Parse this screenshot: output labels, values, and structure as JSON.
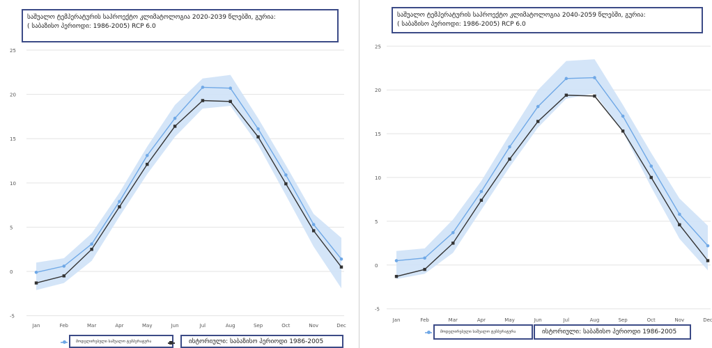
{
  "charts": [
    {
      "title_line1": "საშუალო ტემპერატურის საპროექტო კლიმატოლოგია 2020-2039 წლებში, გურია:",
      "title_line2": "( საბაზისო პერიოდი:  1986-2005) RCP 6.0",
      "legend_projected": "მოდელირებული საშუალო ტემპერატურა",
      "legend_historical": "ისტორიული: საბაზისო პერიოდი 1986-2005"
    },
    {
      "title_line1": "საშუალო ტემპერატურის საპროექტო კლიმატოლოგია 2040-2059 წლებში, გურია:",
      "title_line2": "( საბაზისო პერიოდი:  1986-2005) RCP 6.0",
      "legend_projected": "მოდელირებული საშუალო ტემპერატურა",
      "legend_historical": "ისტორიული: საბაზისო პერიოდი 1986-2005"
    }
  ],
  "colors": {
    "projected_line": "#6fa8e6",
    "band": "#cfe2f7",
    "historical_line": "#333333",
    "frame": "#3b4a86",
    "grid": "#e3e3e3"
  },
  "chart_data": [
    {
      "type": "line",
      "title": "საშუალო ტემპერატურის საპროექტო კლიმატოლოგია 2020-2039 წლებში, გურია:",
      "categories": [
        "Jan",
        "Feb",
        "Mar",
        "Apr",
        "May",
        "Jun",
        "Jul",
        "Aug",
        "Sep",
        "Oct",
        "Nov",
        "Dec"
      ],
      "yticks": [
        -5,
        0,
        5,
        10,
        15,
        20,
        25
      ],
      "ylim": [
        -5.5,
        25
      ],
      "series": [
        {
          "name": "მოდელირებული საშუალო ტემპერატურა",
          "values": [
            -0.1,
            0.6,
            3.1,
            7.9,
            13.1,
            17.3,
            20.8,
            20.7,
            16.1,
            10.9,
            5.3,
            1.4
          ]
        },
        {
          "name": "ისტორიული: საბაზისო პერიოდი 1986-2005",
          "values": [
            -1.3,
            -0.5,
            2.5,
            7.3,
            12.1,
            16.4,
            19.3,
            19.2,
            15.2,
            9.9,
            4.6,
            0.5
          ]
        }
      ],
      "band": {
        "lower": [
          -2.1,
          -1.3,
          1.2,
          6.2,
          11.0,
          15.2,
          18.4,
          18.7,
          14.3,
          8.6,
          2.8,
          -1.9
        ],
        "upper": [
          1.0,
          1.5,
          4.3,
          8.9,
          14.1,
          18.8,
          21.8,
          22.2,
          17.3,
          12.0,
          6.5,
          3.8
        ]
      },
      "grid": true
    },
    {
      "type": "line",
      "title": "საშუალო ტემპერატურის საპროექტო კლიმატოლოგია 2040-2059 წლებში, გურია:",
      "categories": [
        "Jan",
        "Feb",
        "Mar",
        "Apr",
        "May",
        "Jun",
        "Jul",
        "Aug",
        "Sep",
        "Oct",
        "Nov",
        "Dec"
      ],
      "yticks": [
        -5,
        0,
        5,
        10,
        15,
        20,
        25
      ],
      "ylim": [
        -5.5,
        25.5
      ],
      "series": [
        {
          "name": "მოდელირებული საშუალო ტემპერატურა",
          "values": [
            0.5,
            0.8,
            3.7,
            8.4,
            13.5,
            18.1,
            21.3,
            21.4,
            17.0,
            11.3,
            5.8,
            2.2
          ]
        },
        {
          "name": "ისტორიული: საბაზისო პერიოდი 1986-2005",
          "values": [
            -1.3,
            -0.5,
            2.5,
            7.4,
            12.1,
            16.4,
            19.4,
            19.3,
            15.3,
            10.0,
            4.6,
            0.5
          ]
        }
      ],
      "band": {
        "lower": [
          -1.6,
          -1.0,
          1.4,
          6.3,
          11.2,
          15.7,
          19.0,
          19.6,
          15.2,
          8.9,
          3.0,
          -0.6
        ],
        "upper": [
          1.6,
          1.9,
          5.2,
          9.6,
          14.9,
          20.0,
          23.3,
          23.5,
          18.3,
          12.8,
          7.6,
          4.5
        ]
      },
      "grid": true
    }
  ]
}
